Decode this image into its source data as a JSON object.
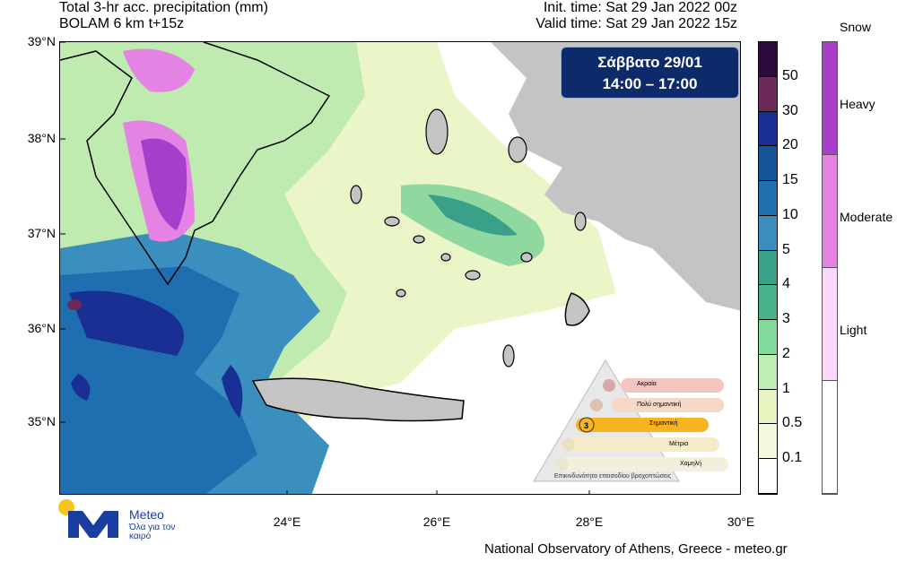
{
  "header": {
    "title_line1": "Total 3-hr acc. precipitation (mm)",
    "title_line2": "BOLAM 6 km t+15z",
    "init_time": "Init. time: Sat 29 Jan 2022 00z",
    "valid_time": "Valid time: Sat 29 Jan 2022 15z"
  },
  "badge": {
    "day": "Σάββατο 29/01",
    "hours": "14:00 – 17:00"
  },
  "axes": {
    "lat_labels": [
      "39°N",
      "38°N",
      "37°N",
      "36°N",
      "35°N"
    ],
    "lon_labels": [
      "24°E",
      "26°E",
      "28°E",
      "30°E"
    ]
  },
  "precip_legend": {
    "labels": [
      "50",
      "30",
      "20",
      "15",
      "10",
      "5",
      "4",
      "3",
      "2",
      "1",
      "0.5",
      "0.1"
    ],
    "colors": [
      "#2b0b3f",
      "#6b2a58",
      "#1a2f93",
      "#16559a",
      "#1f6fb0",
      "#3b8fbf",
      "#3aa08a",
      "#48b48a",
      "#7fdc9a",
      "#bff0b4",
      "#e6f5c0",
      "#f2f9dc",
      "#ffffff"
    ]
  },
  "snow_legend": {
    "title": "Snow",
    "levels": [
      "Heavy",
      "Moderate",
      "Light"
    ],
    "colors": [
      "#a63ecb",
      "#e483e4",
      "#f8d8f6",
      "#ffffff"
    ]
  },
  "risk_triangle": {
    "levels": [
      "Ακραία",
      "Πολύ σημαντική",
      "Σημαντική",
      "Μέτρια",
      "Χαμηλή"
    ],
    "active_level": "3",
    "caption": "Επικινδυνότητα επεισοδίου βροχοπτώσεις"
  },
  "logo": {
    "name": "Meteo",
    "tagline": "Όλα για τον καιρό"
  },
  "credit": "National Observatory of Athens, Greece - meteo.gr"
}
